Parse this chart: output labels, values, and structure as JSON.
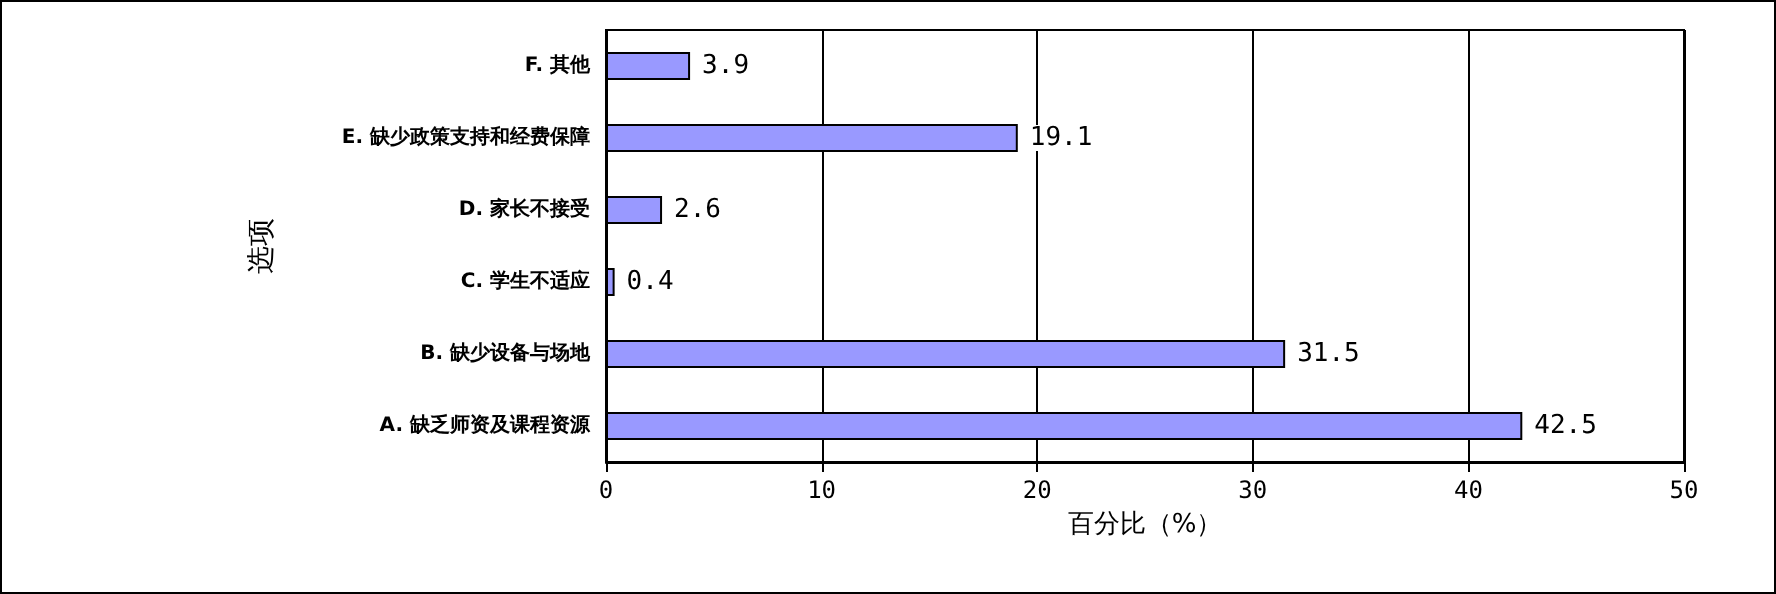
{
  "chart_data": {
    "type": "bar",
    "orientation": "horizontal",
    "xlabel": "百分比（%）",
    "ylabel": "选项",
    "categories": [
      "F. 其他",
      "E. 缺少政策支持和经费保障",
      "D. 家长不接受",
      "C. 学生不适应",
      "B. 缺少设备与场地",
      "A. 缺乏师资及课程资源"
    ],
    "values": [
      3.9,
      19.1,
      2.6,
      0.4,
      31.5,
      42.5
    ],
    "color": "#9999ff",
    "xlim": [
      0,
      50
    ],
    "xticks": [
      0,
      10,
      20,
      30,
      40,
      50
    ],
    "grid": "x",
    "data_labels": true
  }
}
